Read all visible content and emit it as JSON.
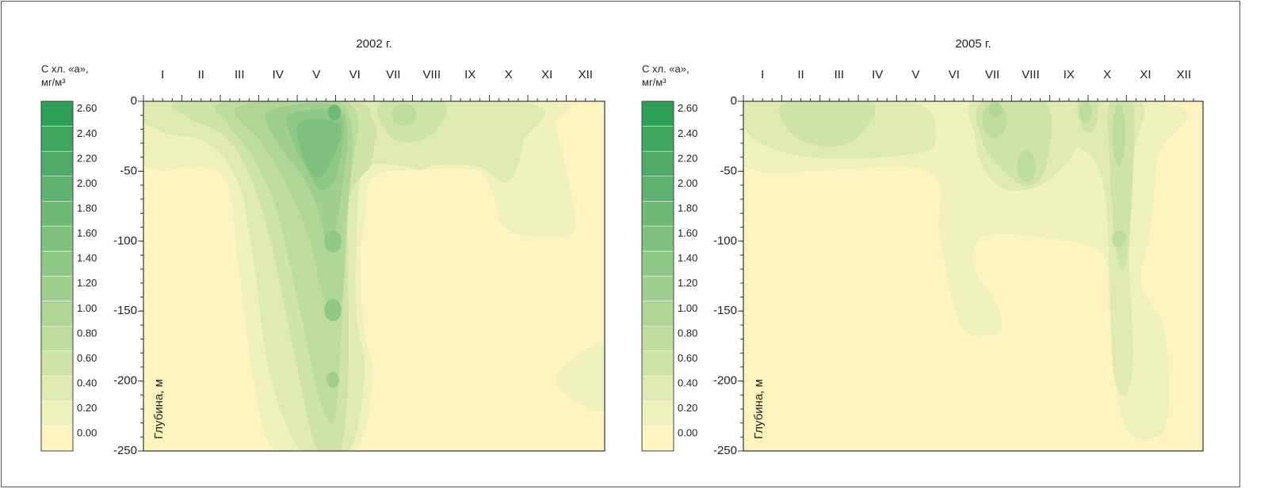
{
  "chart_data": [
    {
      "type": "contour",
      "title": "2002 г.",
      "colorbar_title": [
        "С хл. «а»,",
        "мг/м³"
      ],
      "categories": [
        "I",
        "II",
        "III",
        "IV",
        "V",
        "VI",
        "VII",
        "VIII",
        "IX",
        "X",
        "XI",
        "XII"
      ],
      "ylabel": "Глубина, м",
      "ylim": [
        -250,
        0
      ],
      "yticks": [
        -250,
        -200,
        -150,
        -100,
        -50,
        0
      ],
      "colorbar": {
        "ticks": [
          {
            "value": 0,
            "label": "0.00"
          },
          {
            "value": 0.2,
            "label": "0.20"
          },
          {
            "value": 0.4,
            "label": "0.40"
          },
          {
            "value": 0.6,
            "label": "0.60"
          },
          {
            "value": 0.8,
            "label": "0.80"
          },
          {
            "value": 1,
            "label": "1.00"
          },
          {
            "value": 1.2,
            "label": "1.20"
          },
          {
            "value": 1.4,
            "label": "1.40"
          },
          {
            "value": 1.6,
            "label": "1.60"
          },
          {
            "value": 1.8,
            "label": "1.80"
          },
          {
            "value": 2,
            "label": "2.00"
          },
          {
            "value": 2.2,
            "label": "2.20"
          },
          {
            "value": 2.4,
            "label": "2.40"
          },
          {
            "value": 2.6,
            "label": "2.60"
          }
        ],
        "colors": [
          "#fdf3bf",
          "#eef1bb",
          "#dfeab2",
          "#cfe3a8",
          "#bfdc9f",
          "#afd597",
          "#9fce8f",
          "#8fc787",
          "#7fc07f",
          "#6fb977",
          "#5fb26f",
          "#4fab67",
          "#3fa55f",
          "#2f9e57"
        ]
      }
    },
    {
      "type": "contour",
      "title": "2005 г.",
      "colorbar_title": [
        "С хл. «а»,",
        "мг/м³"
      ],
      "categories": [
        "I",
        "II",
        "III",
        "IV",
        "V",
        "VI",
        "VII",
        "VIII",
        "IX",
        "X",
        "XI",
        "XII"
      ],
      "ylabel": "Глубина, м",
      "ylim": [
        -250,
        0
      ],
      "yticks": [
        -250,
        -200,
        -150,
        -100,
        -50,
        0
      ],
      "colorbar": {
        "ticks": [
          {
            "value": 0,
            "label": "0.00"
          },
          {
            "value": 0.2,
            "label": "0.20"
          },
          {
            "value": 0.4,
            "label": "0.40"
          },
          {
            "value": 0.6,
            "label": "0.60"
          },
          {
            "value": 0.8,
            "label": "0.80"
          },
          {
            "value": 1,
            "label": "1.00"
          },
          {
            "value": 1.2,
            "label": "1.20"
          },
          {
            "value": 1.4,
            "label": "1.40"
          },
          {
            "value": 1.6,
            "label": "1.60"
          },
          {
            "value": 1.8,
            "label": "1.80"
          },
          {
            "value": 2,
            "label": "2.00"
          },
          {
            "value": 2.2,
            "label": "2.20"
          },
          {
            "value": 2.4,
            "label": "2.40"
          },
          {
            "value": 2.6,
            "label": "2.60"
          }
        ],
        "colors": [
          "#fdf3bf",
          "#eef1bb",
          "#dfeab2",
          "#cfe3a8",
          "#bfdc9f",
          "#afd597",
          "#9fce8f",
          "#8fc787",
          "#7fc07f",
          "#6fb977",
          "#5fb26f",
          "#4fab67",
          "#3fa55f",
          "#2f9e57"
        ]
      }
    }
  ]
}
